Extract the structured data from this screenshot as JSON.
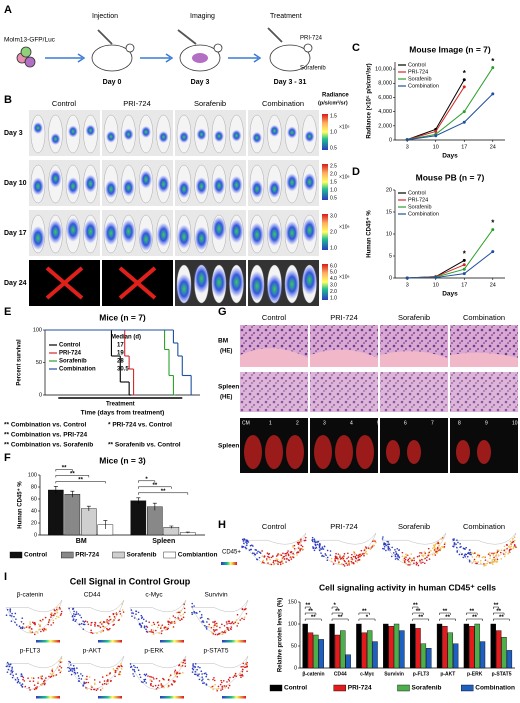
{
  "figure": {
    "panel_letters": [
      "A",
      "B",
      "C",
      "D",
      "E",
      "F",
      "G",
      "H",
      "I"
    ],
    "a": {
      "cell_line": "Molm13-GFP/Luc",
      "steps": [
        {
          "label": "Injection",
          "day": "Day 0"
        },
        {
          "label": "Imaging",
          "day": "Day 3"
        },
        {
          "label": "Treatment",
          "day": "Day 3 - 31"
        }
      ],
      "drugs": [
        "PRI-724",
        "Sorafenib"
      ]
    },
    "b": {
      "columns": [
        "Control",
        "PRI-724",
        "Sorafenib",
        "Combination"
      ],
      "rows": [
        "Day 3",
        "Day 10",
        "Day 17",
        "Day 24"
      ],
      "scale_title": "Radiance",
      "scale_unit": "(p/s/cm²/sr)",
      "colorbars": [
        {
          "exponent": "×10⁵",
          "ticks": [
            "1.5",
            "1.0",
            "0.5"
          ]
        },
        {
          "exponent": "×10⁶",
          "ticks": [
            "2.5",
            "2.0",
            "1.5",
            "1.0",
            "0.5"
          ]
        },
        {
          "exponent": "×10⁶",
          "ticks": [
            "3.0",
            "2.0",
            "1.0"
          ]
        },
        {
          "exponent": "×10⁶",
          "ticks": [
            "6.0",
            "5.0",
            "4.0",
            "3.0",
            "2.0",
            "1.0"
          ]
        }
      ]
    },
    "g": {
      "columns": [
        "Control",
        "PRI-724",
        "Sorafenib",
        "Combination"
      ],
      "rows": [
        {
          "label": "BM",
          "sub": "(HE)"
        },
        {
          "label": "Spleen",
          "sub": "(HE)"
        },
        {
          "label": "Spleen"
        }
      ],
      "ruler": [
        "CM",
        "1",
        "2",
        "3",
        "4",
        "5",
        "6",
        "7",
        "8",
        "9",
        "10"
      ]
    },
    "h": {
      "columns": [
        "Control",
        "PRI-724",
        "Sorafenib",
        "Combination"
      ],
      "marker": "CD45+"
    },
    "i": {
      "title": "Cell Signal in Control Group",
      "markers": [
        "β-catenin",
        "CD44",
        "c-Myc",
        "Survivin",
        "p-FLT3",
        "p-AKT",
        "p-ERK",
        "p-STAT5"
      ]
    }
  },
  "chart_data": [
    {
      "type": "line",
      "title": "Mouse Image (n = 7)",
      "xlabel": "Days",
      "ylabel": "Radiance (×10⁵ p/s/cm²/sr)",
      "legend": "upper left",
      "x": [
        3,
        10,
        17,
        24
      ],
      "xlim": [
        0,
        27
      ],
      "xticks": [
        3,
        10,
        17,
        24
      ],
      "ylim": [
        0,
        11000
      ],
      "yticks": [
        0,
        {
          "value": 2000,
          "label": "2,000"
        },
        {
          "value": 4000,
          "label": "4,000"
        },
        {
          "value": 6000,
          "label": "6,000"
        },
        {
          "value": 8000,
          "label": "8,000"
        },
        {
          "value": 10000,
          "label": "10,000"
        }
      ],
      "series": [
        {
          "name": "Control",
          "color": "#000000",
          "values": [
            50,
            1500,
            8500,
            null
          ]
        },
        {
          "name": "PRI-724",
          "color": "#d62728",
          "values": [
            50,
            1200,
            7500,
            null
          ]
        },
        {
          "name": "Sorafenib",
          "color": "#2ca02c",
          "values": [
            50,
            800,
            4000,
            10200
          ]
        },
        {
          "name": "Combination",
          "color": "#1f4fa0",
          "values": [
            40,
            600,
            2500,
            6500
          ]
        }
      ],
      "annotations": [
        {
          "text": "*",
          "x": 17
        },
        {
          "text": "*",
          "x": 24
        }
      ]
    },
    {
      "type": "line",
      "title": "Mouse PB (n = 7)",
      "xlabel": "Days",
      "ylabel": "Human CD45⁺ %",
      "legend": "upper left",
      "x": [
        3,
        10,
        17,
        24
      ],
      "xlim": [
        0,
        27
      ],
      "xticks": [
        3,
        10,
        17,
        24
      ],
      "ylim": [
        0,
        20
      ],
      "yticks": [
        0,
        5,
        10,
        15,
        20
      ],
      "series": [
        {
          "name": "Control",
          "color": "#000000",
          "values": [
            0,
            0.3,
            4,
            null
          ]
        },
        {
          "name": "PRI-724",
          "color": "#d62728",
          "values": [
            0,
            0.3,
            3,
            null
          ]
        },
        {
          "name": "Sorafenib",
          "color": "#2ca02c",
          "values": [
            0,
            0.2,
            2,
            11
          ]
        },
        {
          "name": "Combination",
          "color": "#1f4fa0",
          "values": [
            0,
            0.1,
            1,
            6
          ]
        }
      ],
      "annotations": [
        {
          "text": "*",
          "x": 17
        },
        {
          "text": "*",
          "x": 24
        }
      ]
    },
    {
      "type": "step",
      "title": "Mice (n = 7)",
      "xlabel": "Time (days from treatment)",
      "ylabel": "Percent survival",
      "treatment_label": "Treatment",
      "treatment": [
        3,
        31
      ],
      "median_header": "Median (d)",
      "xlim": [
        0,
        35
      ],
      "ylim": [
        0,
        100
      ],
      "yticks": [
        0,
        50,
        100
      ],
      "series": [
        {
          "name": "Control",
          "color": "#000000",
          "median": 17,
          "x": [
            0,
            15,
            17,
            19
          ],
          "values": [
            100,
            60,
            20,
            0
          ]
        },
        {
          "name": "PRI-724",
          "color": "#d62728",
          "median": 19,
          "x": [
            0,
            18,
            19,
            20
          ],
          "values": [
            100,
            60,
            40,
            0
          ]
        },
        {
          "name": "Sorafenib",
          "color": "#2ca02c",
          "median": 28,
          "x": [
            0,
            27,
            28,
            29
          ],
          "values": [
            100,
            70,
            30,
            0
          ]
        },
        {
          "name": "Combination",
          "color": "#1f4fa0",
          "median": 30.5,
          "x": [
            0,
            29,
            30,
            31,
            33
          ],
          "values": [
            100,
            80,
            60,
            30,
            0
          ]
        }
      ],
      "comparisons": [
        "** Combination vs. Control",
        "* PRI-724 vs. Control",
        "** Combination vs. PRI-724",
        "** Combination vs. Sorafenib",
        "** Sorafenib vs. Control"
      ]
    },
    {
      "type": "bar",
      "title": "Mice (n = 3)",
      "ylabel": "Human CD45⁺ %",
      "legend": "bottom",
      "categories": [
        "BM",
        "Spleen"
      ],
      "ylim": [
        0,
        100
      ],
      "yticks": [
        0,
        20,
        40,
        60,
        80,
        100
      ],
      "series": [
        {
          "name": "Control",
          "color": "#111111",
          "values": [
            75,
            57
          ],
          "errors": [
            6,
            5
          ]
        },
        {
          "name": "PRI-724",
          "color": "#888888",
          "values": [
            68,
            47
          ],
          "errors": [
            5,
            6
          ]
        },
        {
          "name": "Sorafenib",
          "color": "#cfcfcf",
          "values": [
            44,
            13
          ],
          "errors": [
            4,
            2
          ]
        },
        {
          "name": "Combiantion",
          "color": "#ffffff",
          "values": [
            17,
            4
          ],
          "errors": [
            7,
            1
          ]
        }
      ],
      "significance": [
        [
          "**",
          "**",
          "**"
        ],
        [
          "**",
          "**",
          "*"
        ]
      ]
    },
    {
      "type": "bar",
      "title": "Cell signaling activity in human CD45⁺ cells",
      "ylabel": "Relative protein levels (%)",
      "legend": "bottom",
      "categories": [
        "β-catenin",
        "CD44",
        "c-Myc",
        "Survivin",
        "p-FLT3",
        "p-AKT",
        "p-ERK",
        "p-STAT5"
      ],
      "ylim": [
        0,
        150
      ],
      "yticks": [
        0,
        50,
        100,
        150
      ],
      "series": [
        {
          "name": "Control",
          "color": "#000000",
          "values": [
            100,
            100,
            100,
            100,
            100,
            100,
            100,
            100
          ]
        },
        {
          "name": "PRI-724",
          "color": "#e41a1c",
          "values": [
            80,
            75,
            80,
            95,
            90,
            95,
            95,
            85
          ]
        },
        {
          "name": "Sorafenib",
          "color": "#4daf4a",
          "values": [
            75,
            85,
            85,
            100,
            55,
            80,
            100,
            70
          ]
        },
        {
          "name": "Combination",
          "color": "#1f5fbf",
          "values": [
            65,
            30,
            60,
            85,
            45,
            55,
            60,
            40
          ]
        }
      ],
      "significance": [
        [
          "**",
          "**",
          "**"
        ],
        [
          "**",
          "**",
          "*"
        ],
        [
          "*",
          "**"
        ],
        [],
        [
          "**",
          "**",
          "**"
        ],
        [
          "**",
          "**"
        ],
        [
          "**",
          "**"
        ],
        [
          "**",
          "**",
          "**"
        ]
      ]
    }
  ]
}
